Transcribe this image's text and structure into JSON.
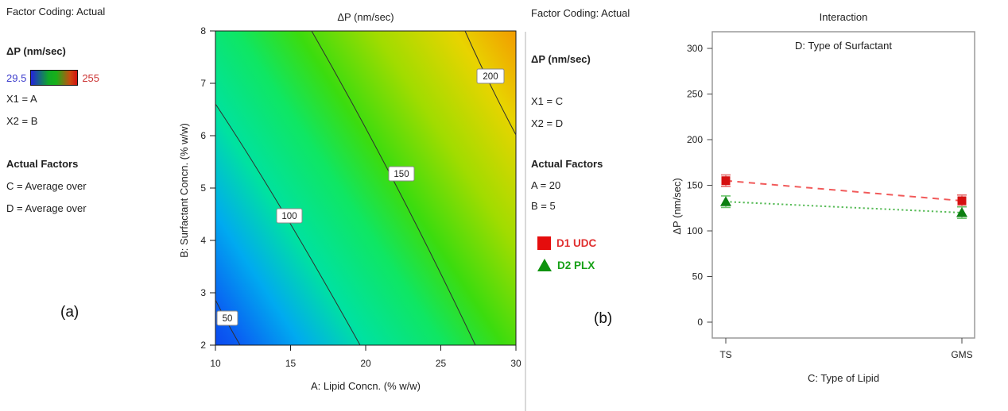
{
  "panel_a": {
    "sidebar": {
      "factor_coding": "Factor Coding: Actual",
      "response_label": "ΔP (nm/sec)",
      "scale_min": "29.5",
      "scale_max": "255",
      "x1": "X1 = A",
      "x2": "X2 = B",
      "actual_factors_heading": "Actual Factors",
      "factor_line_1": "C = Average over",
      "factor_line_2": "D = Average over"
    },
    "panel_label": "(a)"
  },
  "panel_b": {
    "sidebar": {
      "factor_coding": "Factor Coding: Actual",
      "response_label": "ΔP (nm/sec)",
      "x1": "X1 = C",
      "x2": "X2 = D",
      "actual_factors_heading": "Actual Factors",
      "factor_line_1": "A = 20",
      "factor_line_2": "B = 5"
    },
    "legend": [
      {
        "label": "D1 UDC",
        "marker": "square",
        "marker_color": "#e50d0d",
        "text_color": "#e02f2f"
      },
      {
        "label": "D2 PLX",
        "marker": "triangle",
        "marker_color": "#0f930f",
        "text_color": "#16a016"
      }
    ],
    "panel_label": "(b)"
  },
  "chart_data": [
    {
      "type": "contour",
      "title": "ΔP (nm/sec)",
      "xlabel": "A: Lipid Concn. (% w/w)",
      "ylabel": "B: Surfactant Concn. (% w/w)",
      "xlim": [
        10,
        30
      ],
      "ylim": [
        2,
        8
      ],
      "x_ticks": [
        10,
        15,
        20,
        25,
        30
      ],
      "y_ticks": [
        2,
        3,
        4,
        5,
        6,
        7,
        8
      ],
      "grid": false,
      "color_scale": {
        "min": 29.5,
        "max": 255,
        "min_color": "#2a2ae0",
        "max_color": "#d21212"
      },
      "contour_levels": [
        50,
        100,
        150,
        200
      ],
      "surface_colors": [
        "#0b49ee",
        "#0a5ef2",
        "#00aaf0",
        "#00e2a0",
        "#0fe663",
        "#3cdc0e",
        "#a0dc00",
        "#e8d400",
        "#f29c00"
      ],
      "contour_line_color": "#2f2f2f"
    },
    {
      "type": "line",
      "title": "Interaction",
      "subtitle": "D: Type of Surfactant",
      "xlabel": "C: Type of Lipid",
      "ylabel": "ΔP (nm/sec)",
      "categories": [
        "TS",
        "GMS"
      ],
      "y_ticks": [
        0,
        50,
        100,
        150,
        200,
        250,
        300
      ],
      "ylim": [
        -17,
        318
      ],
      "legend_position": "outside-left",
      "series": [
        {
          "name": "D1 UDC",
          "values": [
            155,
            133
          ],
          "error_bar": 5,
          "marker": "square",
          "marker_color": "#d50f0f",
          "line_color": "#f15a5a",
          "error_color": "#e46a6a",
          "line_style": "dashed"
        },
        {
          "name": "D2 PLX",
          "values": [
            132,
            120
          ],
          "error_bar": 5,
          "marker": "triangle",
          "marker_color": "#0c7f12",
          "line_color": "#57bb57",
          "error_color": "#6cc46c",
          "line_style": "dotted"
        }
      ]
    }
  ]
}
